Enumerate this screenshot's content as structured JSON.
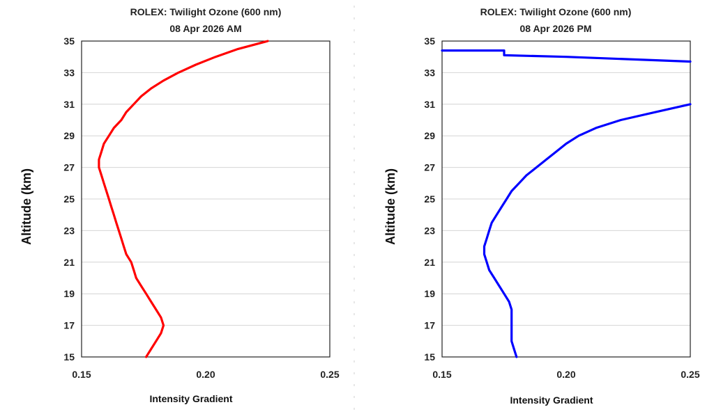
{
  "chart_data": [
    {
      "type": "line",
      "title": "ROLEX: Twilight Ozone (600 nm)",
      "subtitle": "08 Apr 2026 AM",
      "xlabel": "Intensity Gradient",
      "ylabel": "Altitude (km)",
      "xlim": [
        0.15,
        0.25
      ],
      "ylim": [
        15,
        35
      ],
      "xticks": [
        "0.15",
        "0.20",
        "0.25"
      ],
      "yticks": [
        "15",
        "17",
        "19",
        "21",
        "23",
        "25",
        "27",
        "29",
        "31",
        "33",
        "35"
      ],
      "grid": true,
      "color": "#ff0000",
      "series": [
        {
          "points": [
            [
              0.176,
              15.0
            ],
            [
              0.178,
              15.5
            ],
            [
              0.18,
              16.0
            ],
            [
              0.182,
              16.5
            ],
            [
              0.183,
              17.0
            ],
            [
              0.182,
              17.5
            ],
            [
              0.18,
              18.0
            ],
            [
              0.178,
              18.5
            ],
            [
              0.176,
              19.0
            ],
            [
              0.174,
              19.5
            ],
            [
              0.172,
              20.0
            ],
            [
              0.171,
              20.5
            ],
            [
              0.17,
              21.0
            ],
            [
              0.168,
              21.5
            ],
            [
              0.167,
              22.0
            ],
            [
              0.166,
              22.5
            ],
            [
              0.165,
              23.0
            ],
            [
              0.164,
              23.5
            ],
            [
              0.163,
              24.0
            ],
            [
              0.162,
              24.5
            ],
            [
              0.161,
              25.0
            ],
            [
              0.16,
              25.5
            ],
            [
              0.159,
              26.0
            ],
            [
              0.158,
              26.5
            ],
            [
              0.157,
              27.0
            ],
            [
              0.157,
              27.5
            ],
            [
              0.158,
              28.0
            ],
            [
              0.159,
              28.5
            ],
            [
              0.161,
              29.0
            ],
            [
              0.163,
              29.5
            ],
            [
              0.166,
              30.0
            ],
            [
              0.168,
              30.5
            ],
            [
              0.171,
              31.0
            ],
            [
              0.174,
              31.5
            ],
            [
              0.178,
              32.0
            ],
            [
              0.183,
              32.5
            ],
            [
              0.189,
              33.0
            ],
            [
              0.196,
              33.5
            ],
            [
              0.204,
              34.0
            ],
            [
              0.213,
              34.5
            ],
            [
              0.225,
              35.0
            ]
          ]
        }
      ]
    },
    {
      "type": "line",
      "title": "ROLEX: Twilight Ozone (600 nm)",
      "subtitle": "08 Apr 2026 PM",
      "xlabel": "Intensity Gradient",
      "ylabel": "Altitude (km)",
      "xlim": [
        0.15,
        0.25
      ],
      "ylim": [
        15,
        35
      ],
      "xticks": [
        "0.15",
        "0.20",
        "0.25"
      ],
      "yticks": [
        "15",
        "17",
        "19",
        "21",
        "23",
        "25",
        "27",
        "29",
        "31",
        "33",
        "35"
      ],
      "grid": true,
      "color": "#0000ff",
      "series": [
        {
          "points": [
            [
              0.18,
              15.0
            ],
            [
              0.179,
              15.5
            ],
            [
              0.178,
              16.0
            ],
            [
              0.178,
              16.5
            ],
            [
              0.178,
              17.0
            ],
            [
              0.178,
              17.5
            ],
            [
              0.178,
              18.0
            ],
            [
              0.177,
              18.5
            ],
            [
              0.175,
              19.0
            ],
            [
              0.173,
              19.5
            ],
            [
              0.171,
              20.0
            ],
            [
              0.169,
              20.5
            ],
            [
              0.168,
              21.0
            ],
            [
              0.167,
              21.5
            ],
            [
              0.167,
              22.0
            ],
            [
              0.168,
              22.5
            ],
            [
              0.169,
              23.0
            ],
            [
              0.17,
              23.5
            ],
            [
              0.172,
              24.0
            ],
            [
              0.174,
              24.5
            ],
            [
              0.176,
              25.0
            ],
            [
              0.178,
              25.5
            ],
            [
              0.181,
              26.0
            ],
            [
              0.184,
              26.5
            ],
            [
              0.188,
              27.0
            ],
            [
              0.192,
              27.5
            ],
            [
              0.196,
              28.0
            ],
            [
              0.2,
              28.5
            ],
            [
              0.205,
              29.0
            ],
            [
              0.212,
              29.5
            ],
            [
              0.222,
              30.0
            ],
            [
              0.236,
              30.5
            ],
            [
              0.25,
              31.0
            ]
          ]
        },
        {
          "points": [
            [
              0.15,
              34.4
            ],
            [
              0.175,
              34.4
            ],
            [
              0.175,
              34.1
            ],
            [
              0.2,
              34.0
            ],
            [
              0.25,
              33.7
            ]
          ]
        }
      ]
    }
  ]
}
